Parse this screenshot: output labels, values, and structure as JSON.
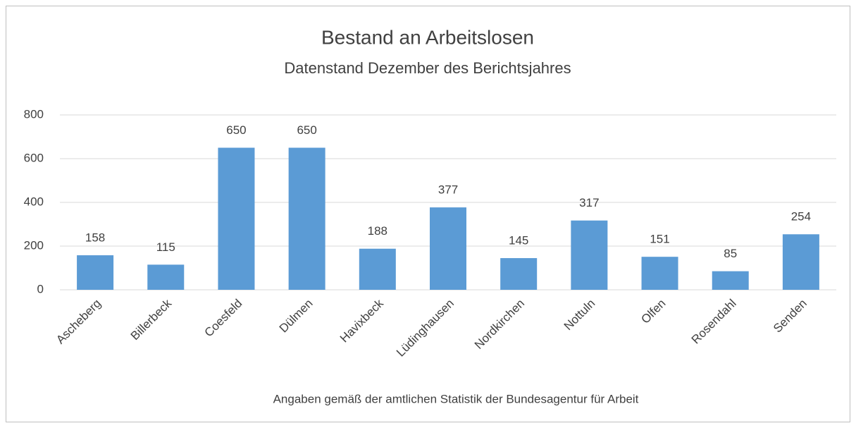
{
  "chart_data": {
    "type": "bar",
    "title": "Bestand an Arbeitslosen",
    "subtitle": "Datenstand Dezember des Berichtsjahres",
    "x_label": "Angaben gemäß der amtlichen Statistik der Bundesagentur für Arbeit",
    "categories": [
      "Ascheberg",
      "Billerbeck",
      "Coesfeld",
      "Dülmen",
      "Havixbeck",
      "Lüdinghausen",
      "Nordkirchen",
      "Nottuln",
      "Olfen",
      "Rosendahl",
      "Senden"
    ],
    "values": [
      158,
      115,
      650,
      650,
      188,
      377,
      145,
      317,
      151,
      85,
      254
    ],
    "color": "#5b9bd5",
    "ylim": [
      0,
      800
    ],
    "yticks": [
      0,
      200,
      400,
      600,
      800
    ],
    "grid": true
  }
}
